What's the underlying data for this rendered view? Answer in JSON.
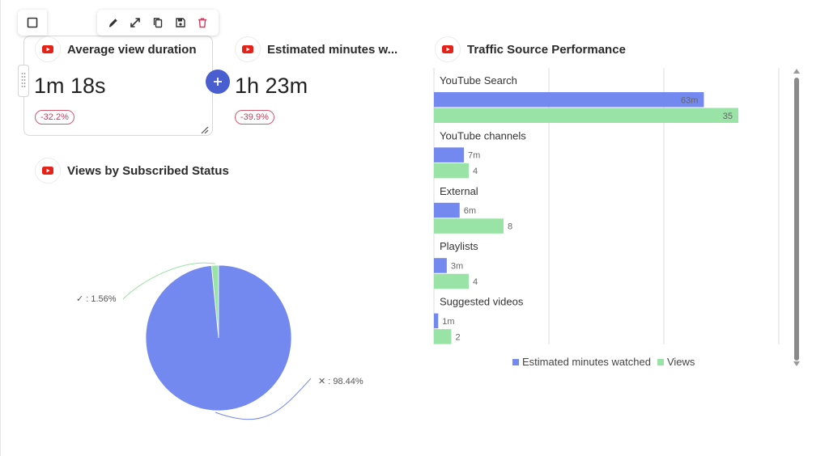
{
  "dashboard": {
    "cards": {
      "avg_view_duration": {
        "title": "Average view duration",
        "value": "1m 18s",
        "change": "-32.2%"
      },
      "est_minutes": {
        "title": "Estimated minutes w...",
        "value": "1h 23m",
        "change": "-39.9%"
      },
      "subscribed_status": {
        "title": "Views by Subscribed Status"
      },
      "traffic_source": {
        "title": "Traffic Source Performance"
      }
    },
    "toolbar": [
      "checkbox-icon",
      "pencil-icon",
      "expand-icon",
      "copy-icon",
      "save-icon",
      "trash-icon"
    ],
    "colors": {
      "accent": "#4a5fcf",
      "series_minutes": "#7489ef",
      "series_views": "#98e3a5",
      "youtube": "#e62117",
      "danger": "#c63c5b"
    }
  },
  "chart_data": [
    {
      "type": "pie",
      "slices": [
        {
          "label": "✓",
          "value": 1.56,
          "display": "✓ : 1.56%",
          "color": "#98e3a5"
        },
        {
          "label": "✕",
          "value": 98.44,
          "display": "✕ : 98.44%",
          "color": "#7489ef"
        }
      ]
    },
    {
      "type": "bar",
      "orientation": "horizontal",
      "categories": [
        "YouTube Search",
        "YouTube channels",
        "External",
        "Playlists",
        "Suggested videos"
      ],
      "series": [
        {
          "name": "Estimated minutes watched",
          "values": [
            63,
            7,
            6,
            3,
            1
          ],
          "labels": [
            "63m",
            "7m",
            "6m",
            "3m",
            "1m"
          ],
          "color": "#7489ef"
        },
        {
          "name": "Views",
          "values": [
            35,
            4,
            8,
            4,
            2
          ],
          "labels": [
            "35",
            "4",
            "8",
            "4",
            "2"
          ],
          "color": "#98e3a5"
        }
      ],
      "minutes_max": 65,
      "views_max": 35,
      "grid": true,
      "legend_position": "bottom"
    }
  ]
}
